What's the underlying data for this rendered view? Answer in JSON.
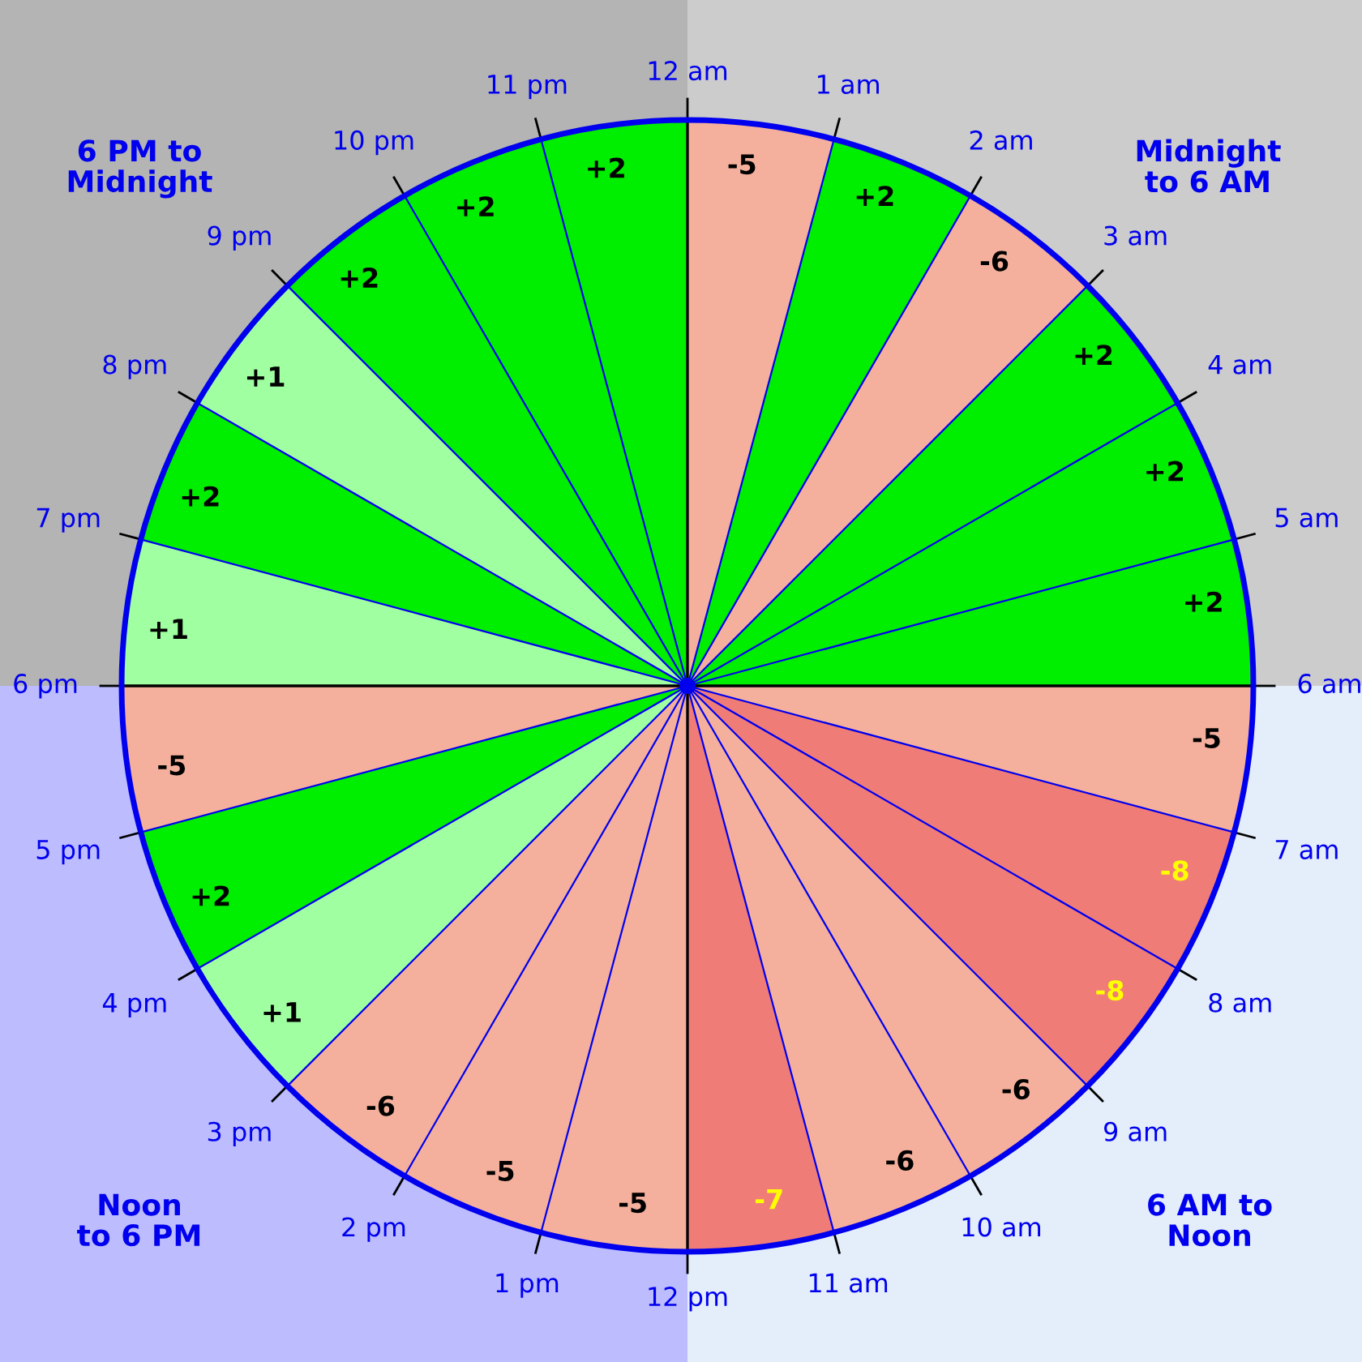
{
  "chart_data": {
    "type": "other",
    "categories": [
      "12 am",
      "1 am",
      "2 am",
      "3 am",
      "4 am",
      "5 am",
      "6 am",
      "7 am",
      "8 am",
      "9 am",
      "10 am",
      "11 am",
      "12 pm",
      "1 pm",
      "2 pm",
      "3 pm",
      "4 pm",
      "5 pm",
      "6 pm",
      "7 pm",
      "8 pm",
      "9 pm",
      "10 pm",
      "11 pm"
    ],
    "values": [
      -5,
      2,
      -6,
      2,
      2,
      2,
      -5,
      -8,
      -8,
      -6,
      -6,
      -7,
      -5,
      -5,
      -6,
      1,
      2,
      -5,
      1,
      2,
      1,
      2,
      2,
      2
    ],
    "value_labels": [
      "-5",
      "+2",
      "-6",
      "+2",
      "+2",
      "+2",
      "-5",
      "-8",
      "-8",
      "-6",
      "-6",
      "-7",
      "-5",
      "-5",
      "-6",
      "+1",
      "+2",
      "-5",
      "+1",
      "+2",
      "+1",
      "+2",
      "+2",
      "+2"
    ],
    "colors": [
      "#f4b09c",
      "#00ee00",
      "#f4b09c",
      "#00ee00",
      "#00ee00",
      "#00ee00",
      "#f4b09c",
      "#f07c78",
      "#f07c78",
      "#f4b09c",
      "#f4b09c",
      "#f07c78",
      "#f4b09c",
      "#f4b09c",
      "#f4b09c",
      "#a0ffa0",
      "#00ee00",
      "#f4b09c",
      "#a0ffa0",
      "#00ee00",
      "#a0ffa0",
      "#00ee00",
      "#00ee00",
      "#00ee00"
    ],
    "annotations": [
      "6 PM to\nMidnight",
      "Midnight\nto 6 AM",
      "Noon\nto 6 PM",
      "6 AM to\nNoon"
    ]
  }
}
